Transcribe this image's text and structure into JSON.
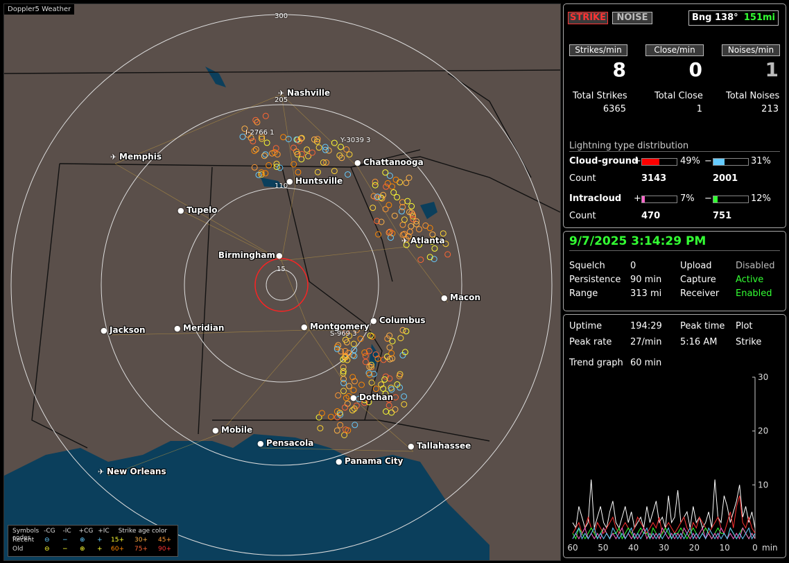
{
  "app": {
    "title": "Doppler5 Weather"
  },
  "colors": {
    "strike_red": "#ff3333",
    "active_green": "#33ff33",
    "ring": "#dddddd",
    "water": "#0b3f5c",
    "land": "#5a4f4a"
  },
  "map": {
    "range_rings": [
      "300",
      "205",
      "110",
      "15"
    ],
    "cities": [
      {
        "name": "Nashville",
        "icon": "airport-icon"
      },
      {
        "name": "Memphis",
        "icon": "airport-icon"
      },
      {
        "name": "Chattanooga",
        "icon": "city-dot-icon"
      },
      {
        "name": "Huntsville",
        "icon": "city-dot-icon"
      },
      {
        "name": "Tupelo",
        "icon": "city-dot-icon"
      },
      {
        "name": "Atlanta",
        "icon": "airport-icon"
      },
      {
        "name": "Birmingham",
        "icon": "city-dot-icon"
      },
      {
        "name": "Macon",
        "icon": "city-dot-icon"
      },
      {
        "name": "Jackson",
        "icon": "city-dot-icon"
      },
      {
        "name": "Meridian",
        "icon": "city-dot-icon"
      },
      {
        "name": "Montgomery",
        "icon": "city-dot-icon"
      },
      {
        "name": "Columbus",
        "icon": "city-dot-icon"
      },
      {
        "name": "Dothan",
        "icon": "city-dot-icon"
      },
      {
        "name": "Mobile",
        "icon": "city-dot-icon"
      },
      {
        "name": "Pensacola",
        "icon": "city-dot-icon"
      },
      {
        "name": "Tallahassee",
        "icon": "city-dot-icon"
      },
      {
        "name": "Panama City",
        "icon": "city-dot-icon"
      },
      {
        "name": "New Orleans",
        "icon": "airport-icon"
      }
    ],
    "highway_labels": [
      "I-2766  1",
      "Y-3039  3",
      "S-969  3"
    ],
    "legend": {
      "header": [
        "Symbols",
        "-CG",
        "-IC",
        "+CG",
        "+IC",
        "Strike age color codes"
      ],
      "recent": {
        "label": "Recent",
        "ages": [
          "15+",
          "30+",
          "45+"
        ]
      },
      "old": {
        "label": "Old",
        "ages": [
          "60+",
          "75+",
          "90+"
        ]
      }
    }
  },
  "top_panel": {
    "strike_label": "STRIKE",
    "noise_label": "NOISE",
    "bearing_label": "Bng 138°",
    "distance_label": "151mi",
    "rate_headers": [
      "Strikes/min",
      "Close/min",
      "Noises/min"
    ],
    "rates": [
      "8",
      "0",
      "1"
    ],
    "total_headers": [
      "Total Strikes",
      "Total Close",
      "Total Noises"
    ],
    "totals": [
      "6365",
      "1",
      "213"
    ],
    "distribution_title": "Lightning type distribution",
    "cloud_ground": {
      "label": "Cloud-ground",
      "pos_sign": "+",
      "pos_pct": "49%",
      "pos_fraction": 0.49,
      "neg_sign": "−",
      "neg_pct": "31%",
      "neg_fraction": 0.31,
      "count_label": "Count",
      "pos_count": "3143",
      "neg_count": "2001"
    },
    "intracloud": {
      "label": "Intracloud",
      "pos_sign": "+",
      "pos_pct": "7%",
      "pos_fraction": 0.07,
      "neg_sign": "−",
      "neg_pct": "12%",
      "neg_fraction": 0.12,
      "count_label": "Count",
      "pos_count": "470",
      "neg_count": "751"
    }
  },
  "status_panel": {
    "datetime": "9/7/2025 3:14:29 PM",
    "rows": [
      {
        "k1": "Squelch",
        "v1": "0",
        "k2": "Upload",
        "v2": "Disabled",
        "v2_active": false
      },
      {
        "k1": "Persistence",
        "v1": "90 min",
        "k2": "Capture",
        "v2": "Active",
        "v2_active": true
      },
      {
        "k1": "Range",
        "v1": "313 mi",
        "k2": "Receiver",
        "v2": "Enabled",
        "v2_active": true
      }
    ]
  },
  "stats_panel": {
    "uptime_label": "Uptime",
    "uptime": "194:29",
    "peak_time_label": "Peak time",
    "plot_label": "Plot",
    "peak_rate_label": "Peak rate",
    "peak_rate": "27/min",
    "peak_time": "5:16 AM",
    "plot_value": "Strike",
    "trend_label": "Trend graph",
    "trend_value": "60 min"
  },
  "chart_data": {
    "type": "line",
    "title": "",
    "xlabel": "min",
    "ylabel": "",
    "x_ticks": [
      "60",
      "50",
      "40",
      "30",
      "20",
      "10",
      "0"
    ],
    "y_ticks": [
      "30",
      "20",
      "10"
    ],
    "xlim": [
      60,
      0
    ],
    "ylim": [
      0,
      30
    ],
    "series": [
      {
        "color": "#ffffff",
        "values": [
          3,
          2,
          6,
          4,
          2,
          3,
          11,
          2,
          4,
          6,
          3,
          2,
          5,
          7,
          3,
          2,
          4,
          6,
          3,
          5,
          2,
          3,
          4,
          2,
          6,
          3,
          5,
          7,
          3,
          4,
          2,
          8,
          3,
          4,
          9,
          3,
          4,
          5,
          2,
          6,
          3,
          4,
          2,
          3,
          5,
          2,
          11,
          4,
          3,
          8,
          6,
          3,
          5,
          7,
          10,
          4,
          6,
          3,
          5,
          2
        ]
      },
      {
        "color": "#ff3333",
        "values": [
          1,
          2,
          3,
          1,
          2,
          4,
          2,
          1,
          3,
          2,
          1,
          2,
          3,
          4,
          2,
          1,
          2,
          3,
          2,
          1,
          2,
          4,
          3,
          2,
          1,
          2,
          3,
          2,
          4,
          1,
          2,
          3,
          2,
          1,
          2,
          3,
          4,
          2,
          1,
          3,
          2,
          4,
          3,
          2,
          1,
          2,
          3,
          4,
          2,
          1,
          3,
          5,
          2,
          6,
          8,
          3,
          2,
          4,
          2,
          1
        ]
      },
      {
        "color": "#33ff33",
        "values": [
          1,
          0,
          2,
          1,
          0,
          1,
          2,
          1,
          0,
          1,
          2,
          1,
          0,
          1,
          1,
          2,
          0,
          1,
          2,
          1,
          0,
          1,
          2,
          1,
          1,
          0,
          2,
          1,
          0,
          1,
          2,
          1,
          0,
          1,
          1,
          2,
          1,
          0,
          1,
          2,
          1,
          0,
          1,
          2,
          1,
          0,
          1,
          2,
          1,
          1,
          0,
          2,
          1,
          0,
          1,
          2,
          1,
          0,
          1,
          0
        ]
      },
      {
        "color": "#ff66cc",
        "values": [
          0,
          1,
          0,
          1,
          2,
          0,
          1,
          0,
          1,
          0,
          2,
          1,
          0,
          1,
          0,
          1,
          2,
          0,
          1,
          0,
          1,
          0,
          1,
          2,
          0,
          1,
          0,
          1,
          0,
          2,
          1,
          0,
          1,
          0,
          1,
          0,
          2,
          1,
          0,
          1,
          0,
          1,
          2,
          0,
          1,
          0,
          1,
          0,
          2,
          1,
          0,
          1,
          0,
          1,
          0,
          2,
          1,
          0,
          1,
          0
        ]
      },
      {
        "color": "#66ccff",
        "values": [
          0,
          1,
          2,
          0,
          1,
          0,
          1,
          2,
          0,
          1,
          0,
          1,
          0,
          2,
          1,
          0,
          1,
          0,
          1,
          2,
          0,
          1,
          0,
          1,
          2,
          0,
          1,
          0,
          1,
          0,
          1,
          2,
          0,
          1,
          0,
          1,
          0,
          1,
          2,
          0,
          1,
          0,
          1,
          0,
          2,
          1,
          0,
          1,
          0,
          1,
          0,
          2,
          1,
          0,
          1,
          0,
          1,
          2,
          0,
          1
        ]
      }
    ]
  }
}
